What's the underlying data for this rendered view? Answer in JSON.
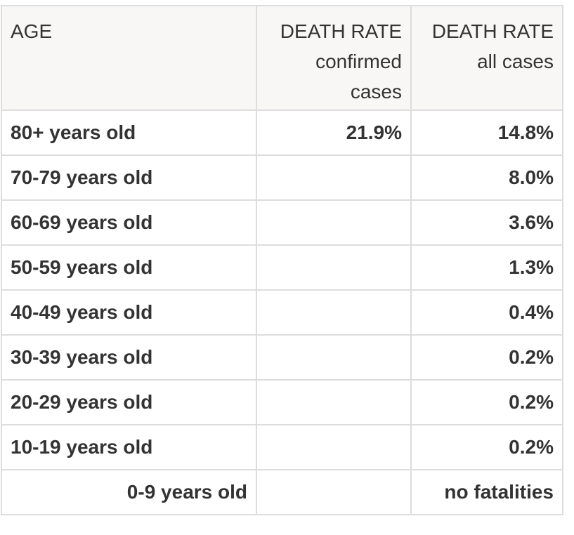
{
  "table": {
    "headers": [
      {
        "lines": [
          "AGE"
        ]
      },
      {
        "lines": [
          "DEATH RATE",
          "confirmed",
          "cases"
        ]
      },
      {
        "lines": [
          "DEATH RATE",
          "all cases"
        ]
      }
    ],
    "rows": [
      {
        "age": "80+ years old",
        "confirmed": "21.9%",
        "all": "14.8%"
      },
      {
        "age": "70-79 years old",
        "confirmed": "",
        "all": "8.0%"
      },
      {
        "age": "60-69 years old",
        "confirmed": "",
        "all": "3.6%"
      },
      {
        "age": "50-59 years old",
        "confirmed": "",
        "all": "1.3%"
      },
      {
        "age": "40-49 years old",
        "confirmed": "",
        "all": "0.4%"
      },
      {
        "age": "30-39 years old",
        "confirmed": "",
        "all": "0.2%"
      },
      {
        "age": "20-29 years old",
        "confirmed": "",
        "all": "0.2%"
      },
      {
        "age": "10-19 years old",
        "confirmed": "",
        "all": "0.2%"
      },
      {
        "age": "0-9 years old",
        "confirmed": "",
        "all": "no fatalities"
      }
    ]
  }
}
